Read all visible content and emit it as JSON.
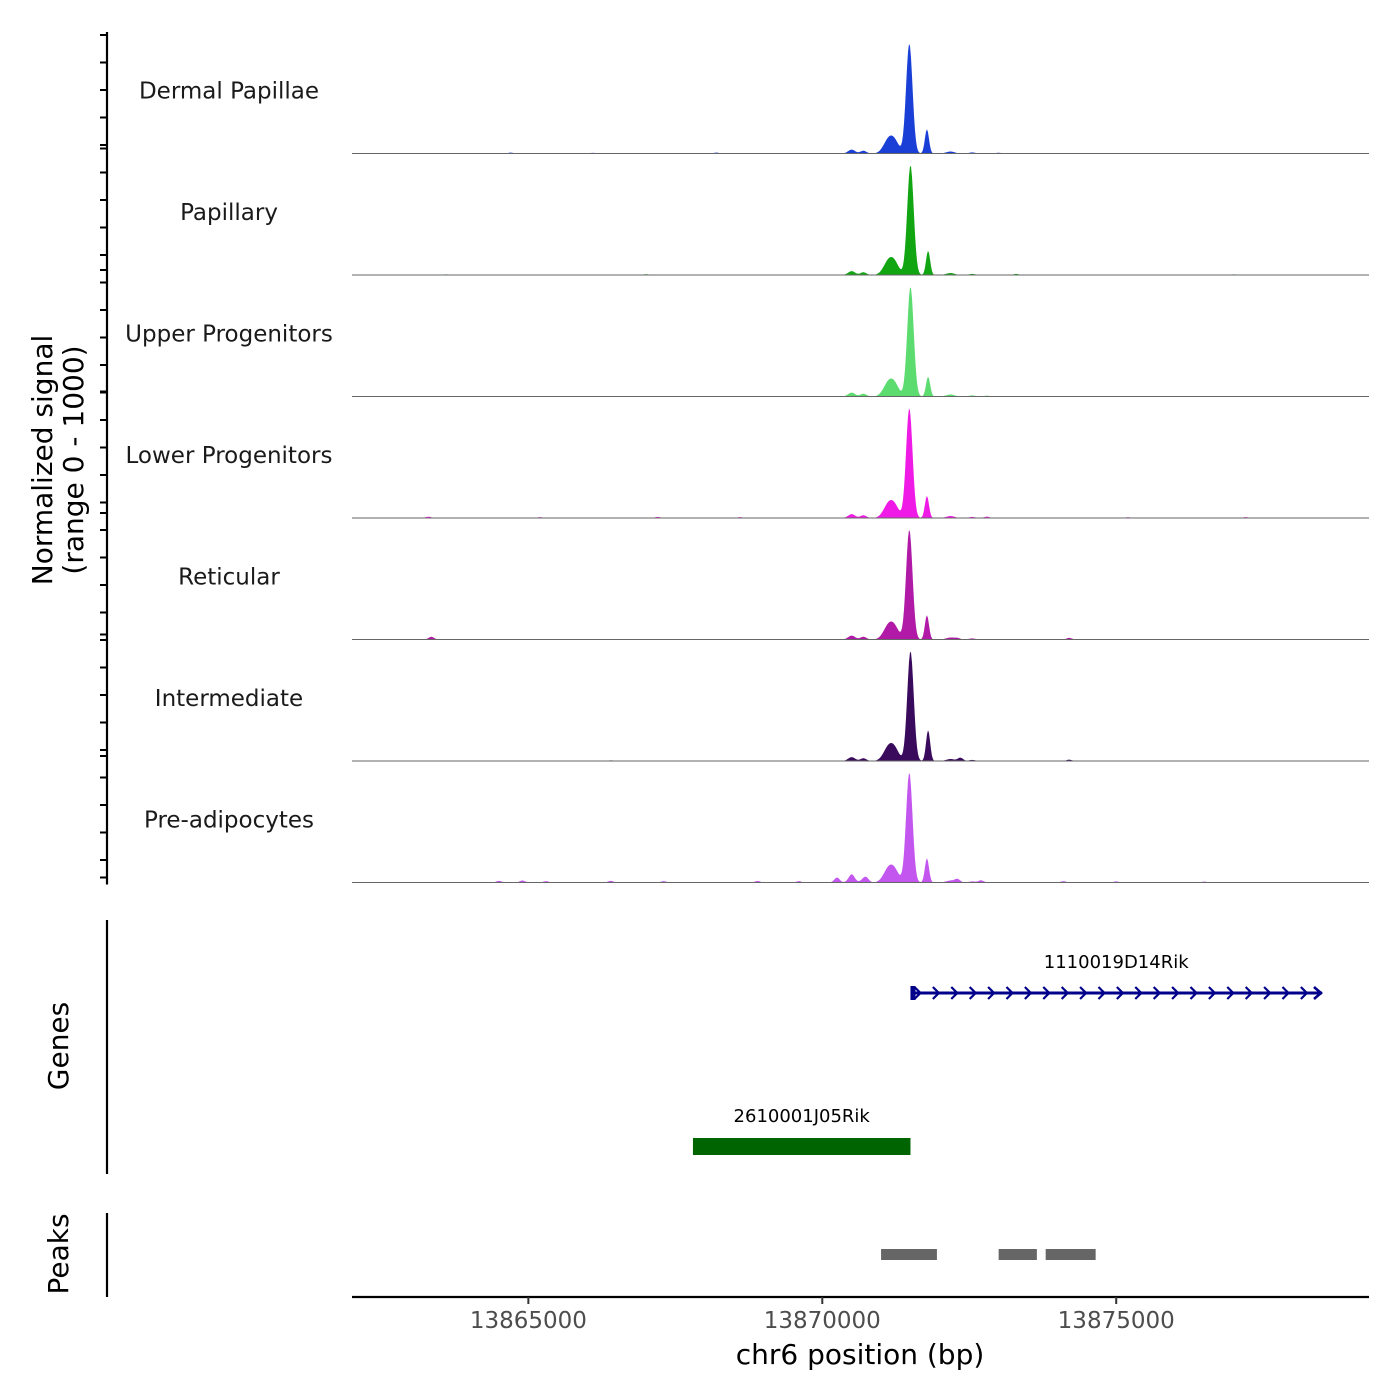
{
  "chart_data": {
    "type": "area",
    "title": "",
    "chromosome": "chr6",
    "xlabel": "chr6 position (bp)",
    "ylabel_line1": "Normalized signal",
    "ylabel_line2": "(range 0 - 1000)",
    "xlim": [
      13862000,
      13879300
    ],
    "ylim": [
      0,
      1000
    ],
    "x_ticks": [
      13865000,
      13870000,
      13875000
    ],
    "x_tick_labels": [
      "13865000",
      "13870000",
      "13875000"
    ],
    "background_peaks": [
      {
        "x": 13871140,
        "sd": 90,
        "amp": 140
      },
      {
        "x": 13871250,
        "sd": 70,
        "amp": 60
      },
      {
        "x": 13870500,
        "sd": 60,
        "amp": 35
      },
      {
        "x": 13870700,
        "sd": 50,
        "amp": 25
      },
      {
        "x": 13872180,
        "sd": 70,
        "amp": 18
      },
      {
        "x": 13872550,
        "sd": 50,
        "amp": 10
      }
    ],
    "series": [
      {
        "name": "Dermal Papillae",
        "color": "#1a3fd6",
        "peaks": [
          {
            "x": 13871480,
            "sd": 55,
            "amp": 1000
          },
          {
            "x": 13871780,
            "sd": 35,
            "amp": 220
          }
        ],
        "noise": [
          {
            "x": 13864700,
            "amp": 8
          },
          {
            "x": 13866100,
            "amp": 6
          },
          {
            "x": 13868200,
            "amp": 8
          },
          {
            "x": 13873000,
            "amp": 7
          },
          {
            "x": 13876300,
            "amp": 5
          }
        ]
      },
      {
        "name": "Papillary",
        "color": "#12a512",
        "peaks": [
          {
            "x": 13871500,
            "sd": 55,
            "amp": 1000
          },
          {
            "x": 13871800,
            "sd": 35,
            "amp": 220
          }
        ],
        "noise": [
          {
            "x": 13863600,
            "amp": 6
          },
          {
            "x": 13867000,
            "amp": 7
          },
          {
            "x": 13873300,
            "amp": 10
          },
          {
            "x": 13877000,
            "amp": 6
          }
        ]
      },
      {
        "name": "Upper Progenitors",
        "color": "#5cdb6f",
        "peaks": [
          {
            "x": 13871500,
            "sd": 55,
            "amp": 1000
          },
          {
            "x": 13871800,
            "sd": 35,
            "amp": 180
          }
        ],
        "noise": [
          {
            "x": 13866500,
            "amp": 5
          },
          {
            "x": 13872800,
            "amp": 8
          }
        ]
      },
      {
        "name": "Lower Progenitors",
        "color": "#f01ae6",
        "peaks": [
          {
            "x": 13871480,
            "sd": 55,
            "amp": 1000
          },
          {
            "x": 13871780,
            "sd": 35,
            "amp": 200
          }
        ],
        "noise": [
          {
            "x": 13863300,
            "amp": 12
          },
          {
            "x": 13865200,
            "amp": 8
          },
          {
            "x": 13867200,
            "amp": 10
          },
          {
            "x": 13868600,
            "amp": 8
          },
          {
            "x": 13872800,
            "amp": 12
          },
          {
            "x": 13875200,
            "amp": 7
          },
          {
            "x": 13877200,
            "amp": 8
          }
        ]
      },
      {
        "name": "Reticular",
        "color": "#b01aa6",
        "peaks": [
          {
            "x": 13871480,
            "sd": 55,
            "amp": 1000
          },
          {
            "x": 13871780,
            "sd": 35,
            "amp": 220
          }
        ],
        "noise": [
          {
            "x": 13863350,
            "amp": 25
          },
          {
            "x": 13874200,
            "amp": 15
          },
          {
            "x": 13872300,
            "amp": 12
          }
        ]
      },
      {
        "name": "Intermediate",
        "color": "#3a0a5c",
        "peaks": [
          {
            "x": 13871500,
            "sd": 55,
            "amp": 1000
          },
          {
            "x": 13871800,
            "sd": 35,
            "amp": 280
          }
        ],
        "noise": [
          {
            "x": 13874200,
            "amp": 12
          },
          {
            "x": 13866400,
            "amp": 6
          },
          {
            "x": 13872350,
            "amp": 30
          }
        ]
      },
      {
        "name": "Pre-adipocytes",
        "color": "#c456f0",
        "peaks": [
          {
            "x": 13871480,
            "sd": 55,
            "amp": 1000
          },
          {
            "x": 13871780,
            "sd": 35,
            "amp": 220
          }
        ],
        "noise": [
          {
            "x": 13864500,
            "amp": 15
          },
          {
            "x": 13864900,
            "amp": 18
          },
          {
            "x": 13865300,
            "amp": 12
          },
          {
            "x": 13866400,
            "amp": 15
          },
          {
            "x": 13867300,
            "amp": 12
          },
          {
            "x": 13868900,
            "amp": 14
          },
          {
            "x": 13869600,
            "amp": 12
          },
          {
            "x": 13870250,
            "amp": 45
          },
          {
            "x": 13870500,
            "amp": 40
          },
          {
            "x": 13870750,
            "amp": 35
          },
          {
            "x": 13872300,
            "amp": 30
          },
          {
            "x": 13872700,
            "amp": 20
          },
          {
            "x": 13874100,
            "amp": 12
          },
          {
            "x": 13875000,
            "amp": 10
          },
          {
            "x": 13876500,
            "amp": 8
          }
        ]
      }
    ],
    "genes": [
      {
        "name": "1110019D14Rik",
        "start": 13871500,
        "end": 13878500,
        "strand": "+",
        "color": "#00008b"
      },
      {
        "name": "2610001J05Rik",
        "start": 13867800,
        "end": 13871500,
        "strand": "",
        "color": "#006400"
      }
    ],
    "peaks_track": [
      {
        "start": 13871000,
        "end": 13871950
      },
      {
        "start": 13873000,
        "end": 13873650
      },
      {
        "start": 13873800,
        "end": 13874650
      }
    ],
    "peaks_color": "#666666",
    "genes_title": "Genes",
    "peaks_title": "Peaks"
  }
}
